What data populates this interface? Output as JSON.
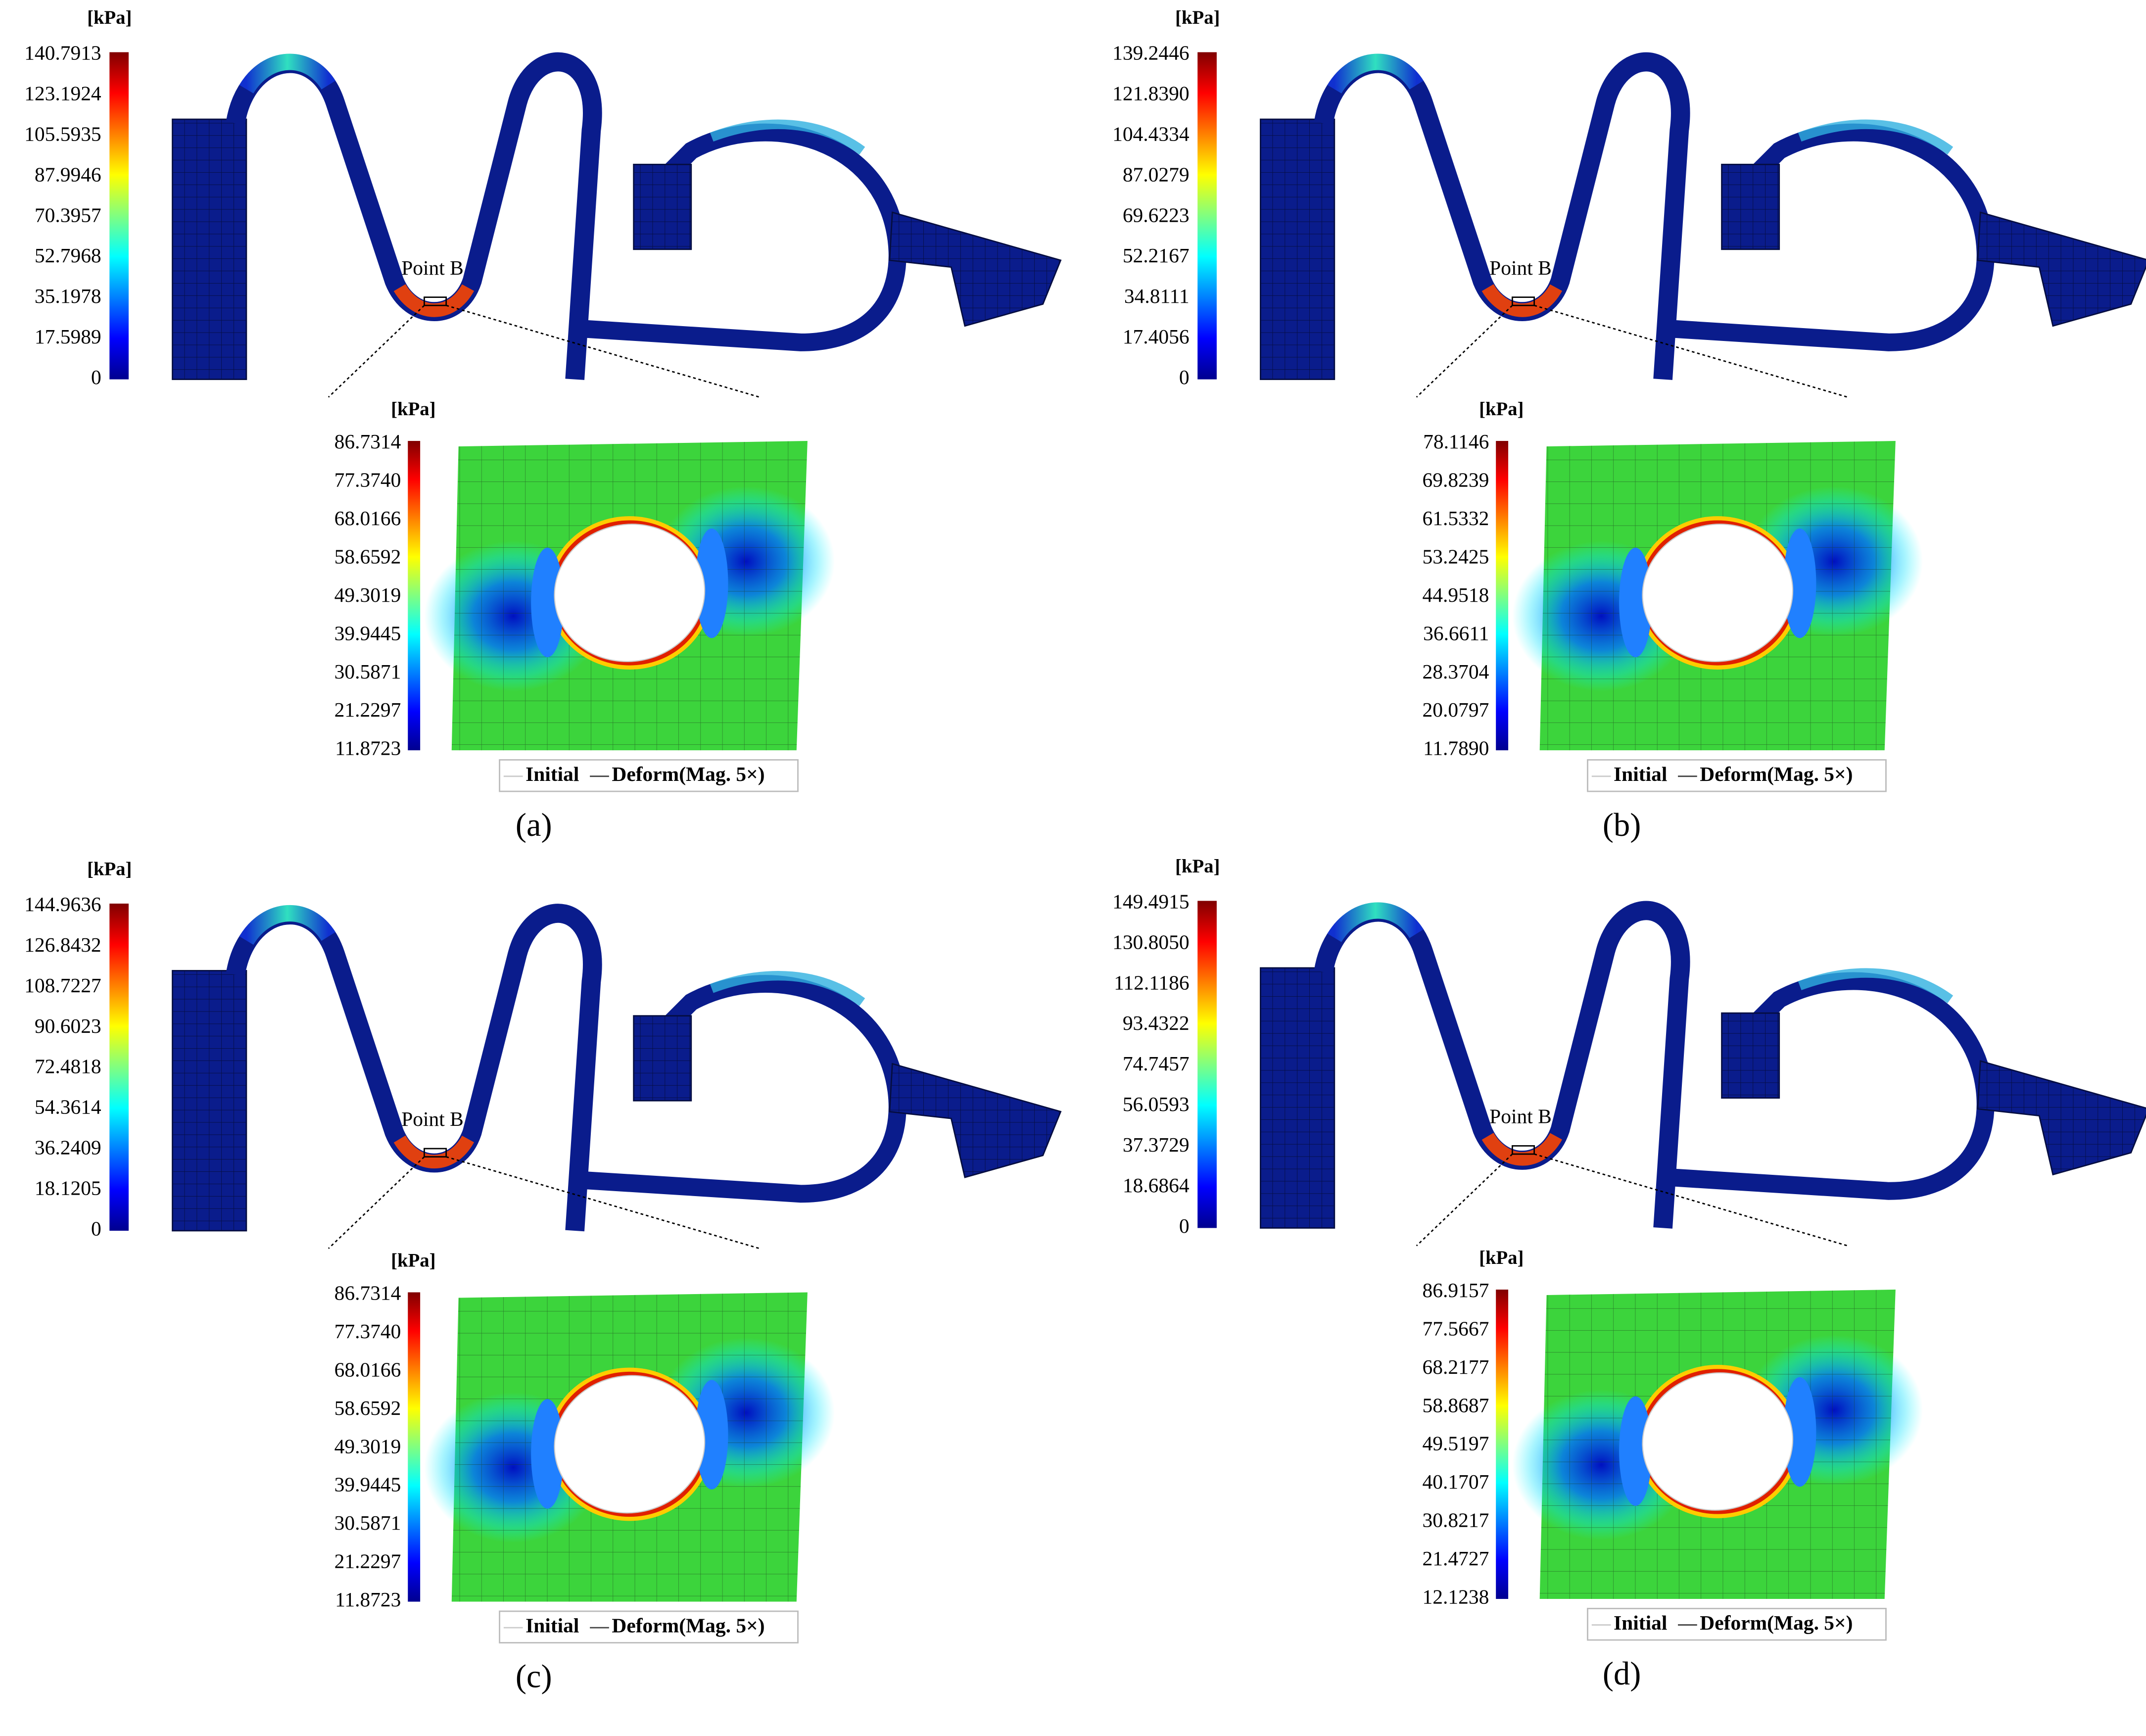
{
  "panels": [
    {
      "label": "(a)",
      "unit": "[kPa]",
      "colorbar_ticks": [
        "140.7913",
        "123.1924",
        "105.5935",
        "87.9946",
        "70.3957",
        "52.7968",
        "35.1978",
        "17.5989",
        "0"
      ],
      "point_label": "Point B",
      "inset": {
        "unit": "[kPa]",
        "colorbar_ticks": [
          "86.7314",
          "77.3740",
          "68.0166",
          "58.6592",
          "49.3019",
          "39.9445",
          "30.5871",
          "21.2297",
          "11.8723"
        ],
        "legend": [
          "Initial",
          "Deform(Mag. 5×)"
        ]
      }
    },
    {
      "label": "(b)",
      "unit": "[kPa]",
      "colorbar_ticks": [
        "139.2446",
        "121.8390",
        "104.4334",
        "87.0279",
        "69.6223",
        "52.2167",
        "34.8111",
        "17.4056",
        "0"
      ],
      "point_label": "Point B",
      "inset": {
        "unit": "[kPa]",
        "colorbar_ticks": [
          "78.1146",
          "69.8239",
          "61.5332",
          "53.2425",
          "44.9518",
          "36.6611",
          "28.3704",
          "20.0797",
          "11.7890"
        ],
        "legend": [
          "Initial",
          "Deform(Mag. 5×)"
        ]
      }
    },
    {
      "label": "(c)",
      "unit": "[kPa]",
      "colorbar_ticks": [
        "144.9636",
        "126.8432",
        "108.7227",
        "90.6023",
        "72.4818",
        "54.3614",
        "36.2409",
        "18.1205",
        "0"
      ],
      "point_label": "Point B",
      "inset": {
        "unit": "[kPa]",
        "colorbar_ticks": [
          "86.7314",
          "77.3740",
          "68.0166",
          "58.6592",
          "49.3019",
          "39.9445",
          "30.5871",
          "21.2297",
          "11.8723"
        ],
        "legend": [
          "Initial",
          "Deform(Mag. 5×)"
        ]
      }
    },
    {
      "label": "(d)",
      "unit": "[kPa]",
      "colorbar_ticks": [
        "149.4915",
        "130.8050",
        "112.1186",
        "93.4322",
        "74.7457",
        "56.0593",
        "37.3729",
        "18.6864",
        "0"
      ],
      "point_label": "Point B",
      "inset": {
        "unit": "[kPa]",
        "colorbar_ticks": [
          "86.9157",
          "77.5667",
          "68.2177",
          "58.8687",
          "49.5197",
          "40.1707",
          "30.8217",
          "21.4727",
          "12.1238"
        ],
        "legend": [
          "Initial",
          "Deform(Mag. 5×)"
        ]
      }
    }
  ]
}
